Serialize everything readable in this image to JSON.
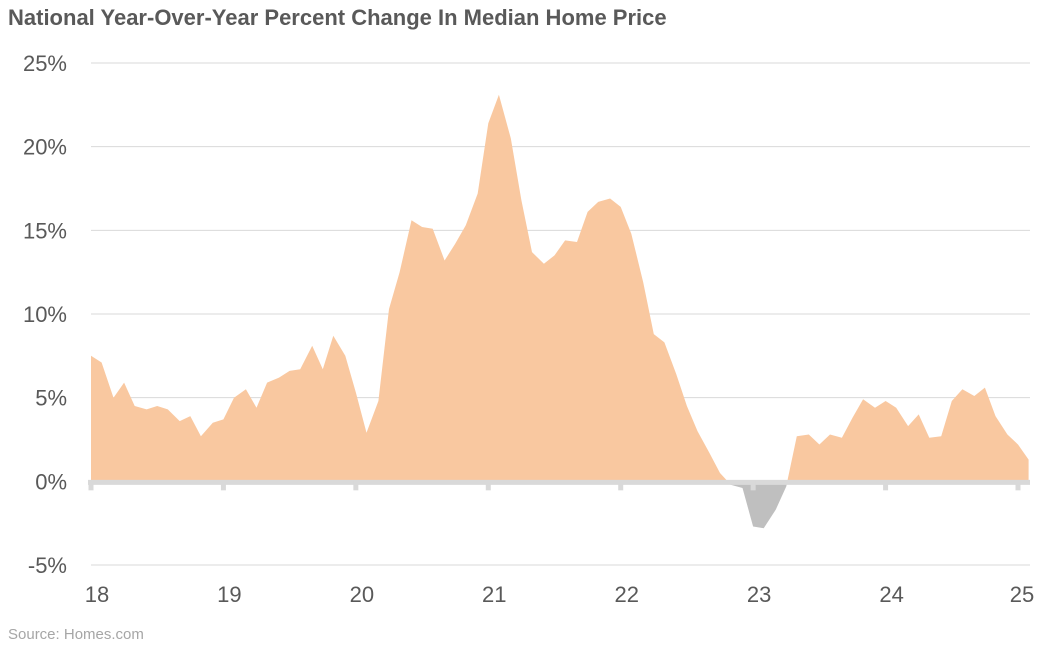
{
  "title": "National Year-Over-Year Percent Change In Median Home Price",
  "source": "Source: Homes.com",
  "colors": {
    "positive": "#f9c8a0",
    "negative": "#bfbfbf",
    "grid": "#d9d9d9",
    "axis": "#d9d9d9",
    "text": "#595959"
  },
  "chart_data": {
    "type": "area",
    "title": "National Year-Over-Year Percent Change In Median Home Price",
    "xlabel": "",
    "ylabel": "",
    "x_tick_labels": [
      "18",
      "19",
      "20",
      "21",
      "22",
      "23",
      "24",
      "25"
    ],
    "y_tick_labels": [
      "25%",
      "20%",
      "15%",
      "10%",
      "5%",
      "0%",
      "-5%"
    ],
    "ylim": [
      -5,
      25
    ],
    "xlim": [
      2018,
      2025
    ],
    "grid": true,
    "series": [
      {
        "values_percent": [
          [
            2018.0,
            7.5
          ],
          [
            2018.08,
            7.1
          ],
          [
            2018.17,
            5.0
          ],
          [
            2018.25,
            5.9
          ],
          [
            2018.33,
            4.5
          ],
          [
            2018.42,
            4.3
          ],
          [
            2018.5,
            4.5
          ],
          [
            2018.58,
            4.3
          ],
          [
            2018.67,
            3.6
          ],
          [
            2018.75,
            3.9
          ],
          [
            2018.83,
            2.7
          ],
          [
            2018.92,
            3.5
          ],
          [
            2019.0,
            3.7
          ],
          [
            2019.08,
            5.0
          ],
          [
            2019.17,
            5.5
          ],
          [
            2019.25,
            4.4
          ],
          [
            2019.33,
            5.9
          ],
          [
            2019.42,
            6.2
          ],
          [
            2019.5,
            6.6
          ],
          [
            2019.58,
            6.7
          ],
          [
            2019.67,
            8.1
          ],
          [
            2019.75,
            6.7
          ],
          [
            2019.83,
            8.7
          ],
          [
            2019.92,
            7.5
          ],
          [
            2020.0,
            5.3
          ],
          [
            2020.08,
            2.9
          ],
          [
            2020.17,
            4.8
          ],
          [
            2020.25,
            10.3
          ],
          [
            2020.33,
            12.5
          ],
          [
            2020.42,
            15.6
          ],
          [
            2020.5,
            15.2
          ],
          [
            2020.58,
            15.1
          ],
          [
            2020.67,
            13.2
          ],
          [
            2020.75,
            14.2
          ],
          [
            2020.83,
            15.3
          ],
          [
            2020.92,
            17.2
          ],
          [
            2021.0,
            21.4
          ],
          [
            2021.08,
            23.1
          ],
          [
            2021.17,
            20.5
          ],
          [
            2021.25,
            16.8
          ],
          [
            2021.33,
            13.7
          ],
          [
            2021.42,
            13.0
          ],
          [
            2021.5,
            13.5
          ],
          [
            2021.58,
            14.4
          ],
          [
            2021.67,
            14.3
          ],
          [
            2021.75,
            16.1
          ],
          [
            2021.83,
            16.7
          ],
          [
            2021.92,
            16.9
          ],
          [
            2022.0,
            16.4
          ],
          [
            2022.08,
            14.8
          ],
          [
            2022.17,
            11.9
          ],
          [
            2022.25,
            8.8
          ],
          [
            2022.33,
            8.3
          ],
          [
            2022.42,
            6.4
          ],
          [
            2022.5,
            4.5
          ],
          [
            2022.58,
            3.0
          ],
          [
            2022.67,
            1.7
          ],
          [
            2022.75,
            0.5
          ],
          [
            2022.83,
            -0.2
          ],
          [
            2022.92,
            -0.4
          ],
          [
            2023.0,
            -2.7
          ],
          [
            2023.08,
            -2.8
          ],
          [
            2023.17,
            -1.7
          ],
          [
            2023.25,
            -0.3
          ],
          [
            2023.33,
            2.7
          ],
          [
            2023.42,
            2.8
          ],
          [
            2023.5,
            2.2
          ],
          [
            2023.58,
            2.8
          ],
          [
            2023.67,
            2.6
          ],
          [
            2023.75,
            3.8
          ],
          [
            2023.83,
            4.9
          ],
          [
            2023.92,
            4.4
          ],
          [
            2024.0,
            4.8
          ],
          [
            2024.08,
            4.4
          ],
          [
            2024.17,
            3.3
          ],
          [
            2024.25,
            4.0
          ],
          [
            2024.33,
            2.6
          ],
          [
            2024.42,
            2.7
          ],
          [
            2024.5,
            4.8
          ],
          [
            2024.58,
            5.5
          ],
          [
            2024.67,
            5.1
          ],
          [
            2024.75,
            5.6
          ],
          [
            2024.83,
            3.9
          ],
          [
            2024.92,
            2.8
          ],
          [
            2025.0,
            2.2
          ],
          [
            2025.08,
            1.3
          ]
        ]
      }
    ]
  }
}
